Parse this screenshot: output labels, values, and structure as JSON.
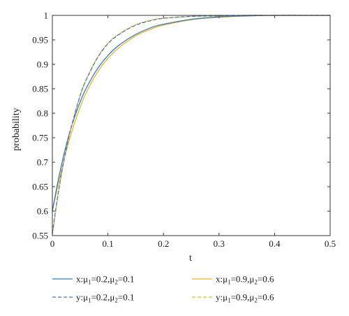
{
  "chart_data": {
    "type": "line",
    "title": "",
    "xlabel": "t",
    "ylabel": "probability",
    "xlim": [
      0,
      0.5
    ],
    "ylim": [
      0.55,
      1
    ],
    "xticks": [
      0,
      0.1,
      0.2,
      0.3,
      0.4,
      0.5
    ],
    "xtick_labels": [
      "0",
      "0.1",
      "0.2",
      "0.3",
      "0.4",
      "0.5"
    ],
    "yticks": [
      0.55,
      0.6,
      0.65,
      0.7,
      0.75,
      0.8,
      0.85,
      0.9,
      0.95,
      1
    ],
    "ytick_labels": [
      "0.55",
      "0.6",
      "0.65",
      "0.7",
      "0.75",
      "0.8",
      "0.85",
      "0.9",
      "0.95",
      "1"
    ],
    "grid": false,
    "legend_position": "bottom",
    "x": [
      0,
      0.01,
      0.02,
      0.03,
      0.04,
      0.05,
      0.06,
      0.08,
      0.1,
      0.12,
      0.15,
      0.18,
      0.2,
      0.25,
      0.3,
      0.35,
      0.4,
      0.45,
      0.5
    ],
    "series": [
      {
        "name": "x:μ1=0.2,μ2=0.1",
        "color": "#3a78c2",
        "dash": "solid",
        "values": [
          0.6,
          0.66,
          0.712,
          0.756,
          0.792,
          0.823,
          0.849,
          0.889,
          0.918,
          0.939,
          0.961,
          0.976,
          0.982,
          0.992,
          0.997,
          0.999,
          1.0,
          1.0,
          1.0
        ]
      },
      {
        "name": "y:μ1=0.2,μ2=0.1",
        "color": "#3a78c2",
        "dash": "dashed",
        "values": [
          0.555,
          0.633,
          0.699,
          0.753,
          0.797,
          0.836,
          0.866,
          0.911,
          0.942,
          0.961,
          0.98,
          0.99,
          0.994,
          0.998,
          0.999,
          1.0,
          1.0,
          1.0,
          1.0
        ]
      },
      {
        "name": "x:μ1=0.9,μ2=0.6",
        "color": "#e8b52c",
        "dash": "solid",
        "values": [
          0.6,
          0.652,
          0.7,
          0.743,
          0.78,
          0.812,
          0.84,
          0.882,
          0.912,
          0.934,
          0.958,
          0.973,
          0.98,
          0.991,
          0.996,
          0.999,
          1.0,
          1.0,
          1.0
        ]
      },
      {
        "name": "y:μ1=0.9,μ2=0.6",
        "color": "#e8b52c",
        "dash": "dashed",
        "values": [
          0.55,
          0.63,
          0.697,
          0.752,
          0.797,
          0.836,
          0.866,
          0.912,
          0.943,
          0.962,
          0.981,
          0.991,
          0.994,
          0.998,
          0.999,
          1.0,
          1.0,
          1.0,
          1.0
        ]
      }
    ],
    "legend": [
      {
        "prefix": "x:μ",
        "s1": "1",
        "mid": "=0.2,μ",
        "s2": "2",
        "suffix": "=0.1",
        "color": "#3a78c2",
        "dash": "solid"
      },
      {
        "prefix": "y:μ",
        "s1": "1",
        "mid": "=0.2,μ",
        "s2": "2",
        "suffix": "=0.1",
        "color": "#3a78c2",
        "dash": "dashed"
      },
      {
        "prefix": "x:μ",
        "s1": "1",
        "mid": "=0.9,μ",
        "s2": "2",
        "suffix": "=0.6",
        "color": "#e8b52c",
        "dash": "solid"
      },
      {
        "prefix": "y:μ",
        "s1": "1",
        "mid": "=0.9,μ",
        "s2": "2",
        "suffix": "=0.6",
        "color": "#e8b52c",
        "dash": "dashed"
      }
    ]
  }
}
